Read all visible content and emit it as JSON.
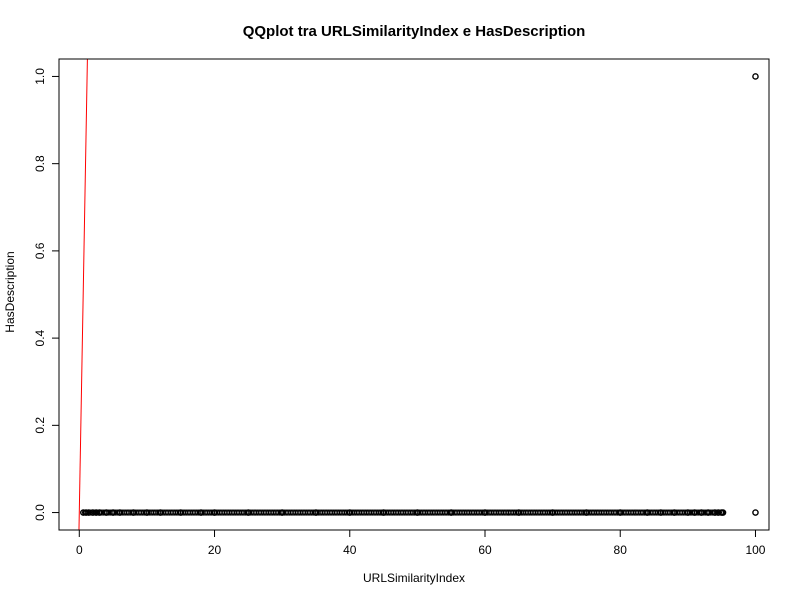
{
  "chart_data": {
    "type": "scatter",
    "title": "QQplot tra URLSimilarityIndex e HasDescription",
    "xlabel": "URLSimilarityIndex",
    "ylabel": "HasDescription",
    "xlim": [
      -3.0,
      102.0
    ],
    "ylim": [
      -0.04,
      1.04
    ],
    "x_ticks": [
      0,
      20,
      40,
      60,
      80,
      100
    ],
    "y_ticks": [
      0.0,
      0.2,
      0.4,
      0.6,
      0.8,
      1.0
    ],
    "x_tick_labels": [
      "0",
      "20",
      "40",
      "60",
      "80",
      "100"
    ],
    "y_tick_labels": [
      "0.0",
      "0.2",
      "0.4",
      "0.6",
      "0.8",
      "1.0"
    ],
    "grid": false,
    "point_style": "open-circle",
    "point_color": "#000000",
    "series": [
      {
        "x": [
          0.6,
          1.0,
          1.4,
          2.0,
          2.5,
          3.0,
          4.0,
          5.0,
          6.0,
          8.0,
          10.0,
          12.0,
          15.0,
          18.0,
          20.0,
          25.0,
          30.0,
          35.0,
          40.0,
          45.0,
          50.0,
          55.0,
          60.0,
          65.0,
          70.0,
          75.0,
          80.0,
          84.0,
          86.0,
          88.0,
          90.0,
          91.0,
          92.0,
          93.0,
          94.0,
          94.5,
          95.0,
          95.2,
          100.0
        ],
        "y": [
          0,
          0,
          0,
          0,
          0,
          0,
          0,
          0,
          0,
          0,
          0,
          0,
          0,
          0,
          0,
          0,
          0,
          0,
          0,
          0,
          0,
          0,
          0,
          0,
          0,
          0,
          0,
          0,
          0,
          0,
          0,
          0,
          0,
          0,
          0,
          0,
          0,
          0,
          0
        ]
      },
      {
        "x": [
          100.0
        ],
        "y": [
          1.0
        ]
      }
    ],
    "reference_line": {
      "color": "#ff0000",
      "points": [
        [
          0.0,
          0.0
        ],
        [
          1.2,
          1.04
        ]
      ]
    }
  }
}
